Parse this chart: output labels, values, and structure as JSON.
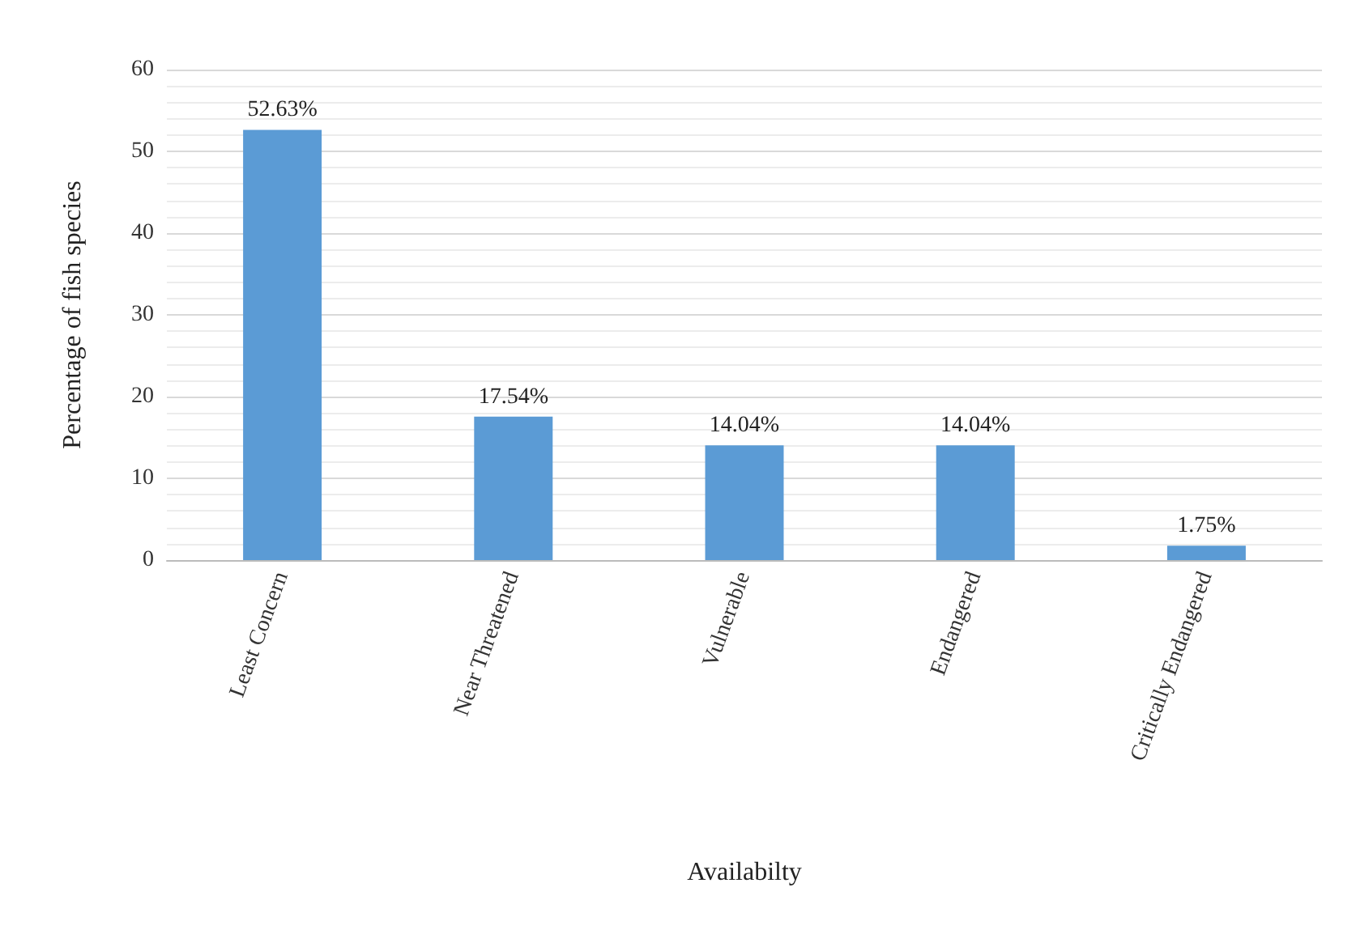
{
  "chart_data": {
    "type": "bar",
    "xlabel": "Availabilty",
    "ylabel": "Percentage of fish species",
    "categories": [
      "Least Concern",
      "Near Threatened",
      "Vulnerable",
      "Endangered",
      "Critically Endangered"
    ],
    "values": [
      52.63,
      17.54,
      14.04,
      14.04,
      1.75
    ],
    "value_labels": [
      "52.63%",
      "17.54%",
      "14.04%",
      "14.04%",
      "1.75%"
    ],
    "color": "#5b9bd5",
    "ylim": [
      0,
      60
    ],
    "yticks": [
      0,
      10,
      20,
      30,
      40,
      50,
      60
    ],
    "grid": "y"
  }
}
